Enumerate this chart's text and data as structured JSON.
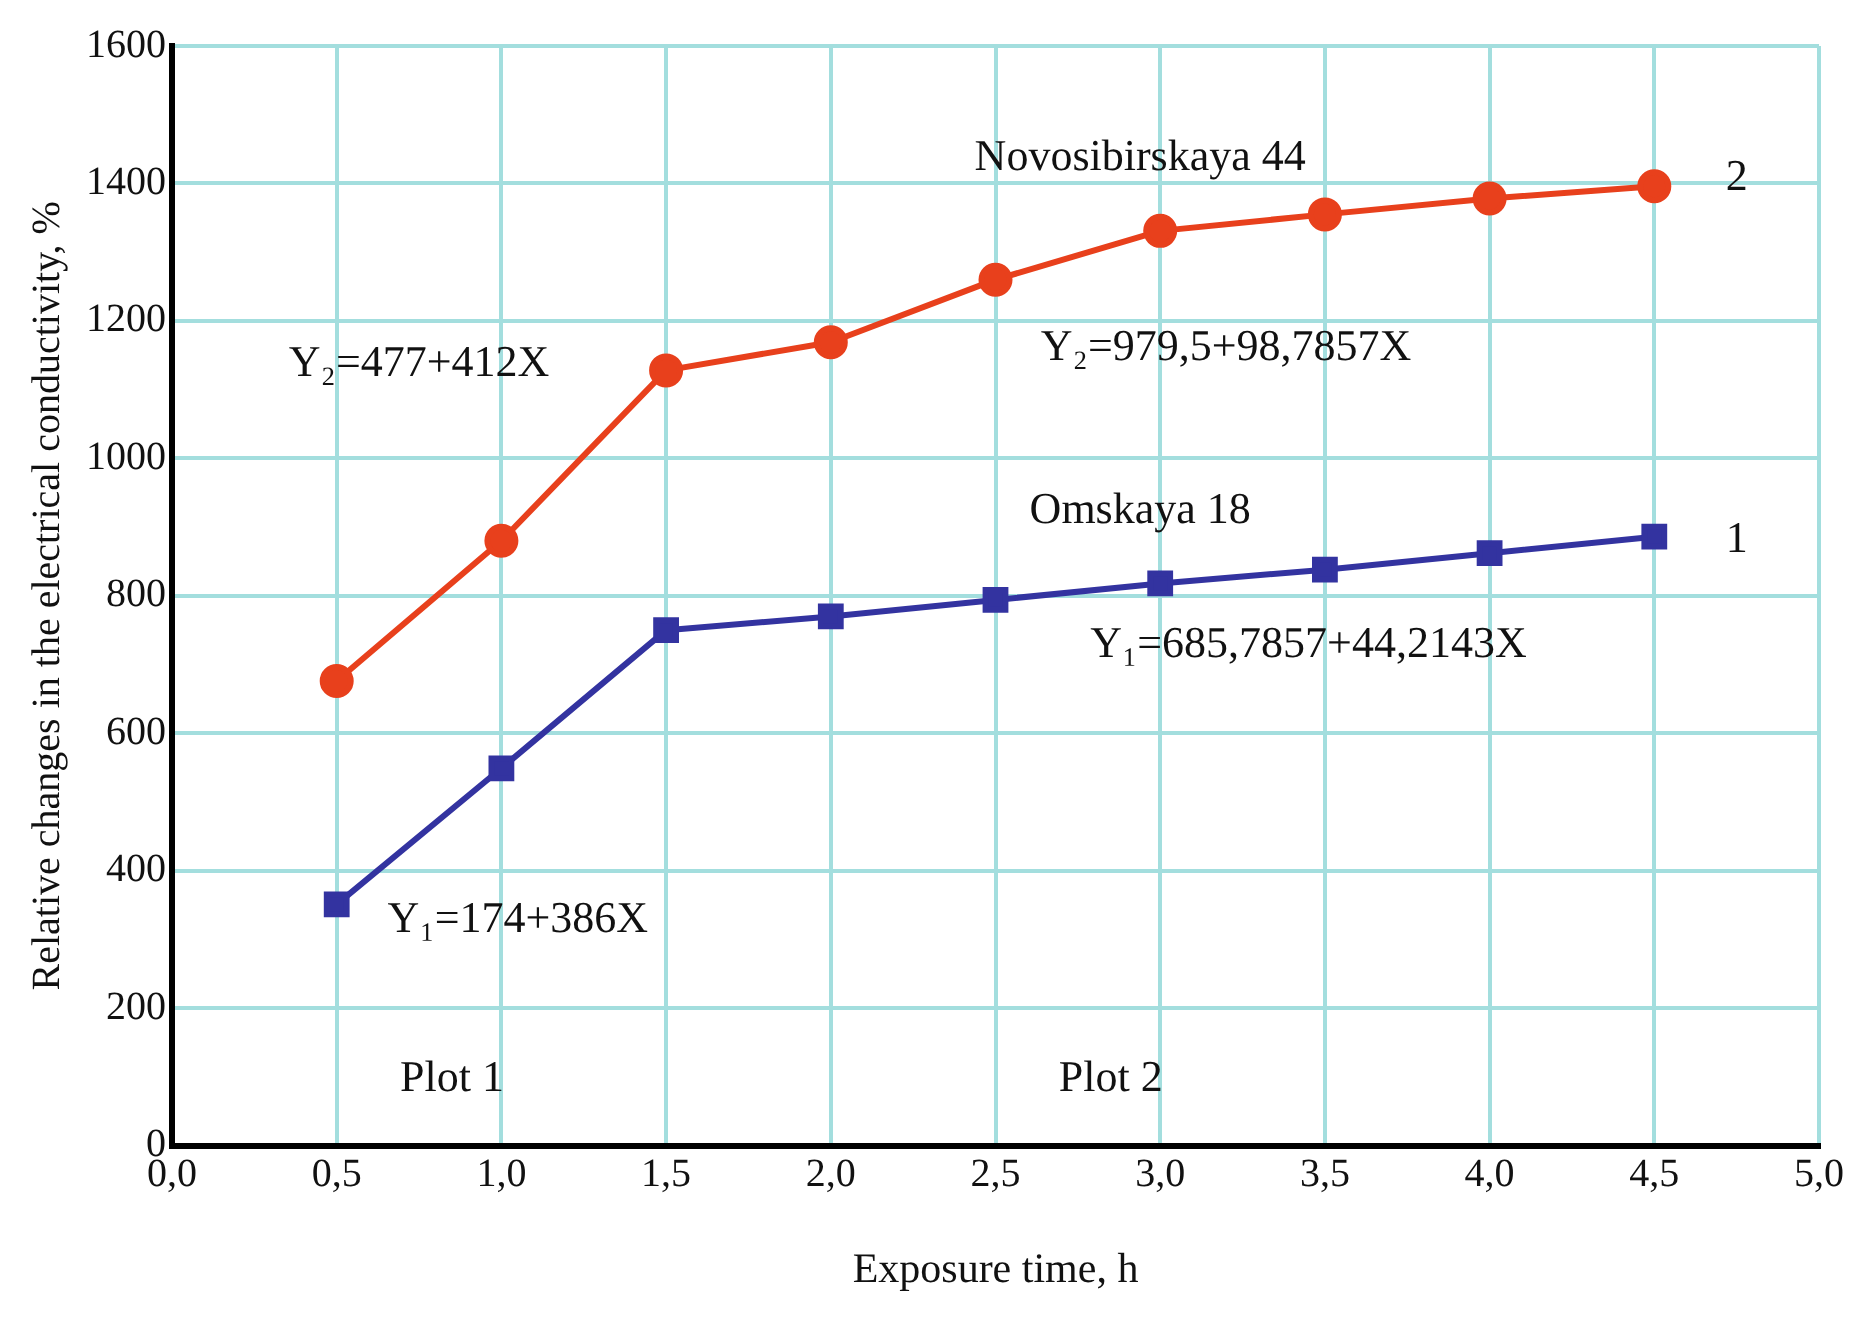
{
  "chart_data": {
    "type": "line",
    "xlabel": "Exposure time, h",
    "ylabel": "Relative changes in the electrical conductivity, %",
    "x": [
      0.5,
      1.0,
      1.5,
      2.0,
      2.5,
      3.0,
      3.5,
      4.0,
      4.5
    ],
    "series": [
      {
        "name": "Novosibirskaya 44",
        "color": "#e8401c",
        "marker": "circle",
        "values": [
          676,
          880,
          1128,
          1169,
          1260,
          1331,
          1355,
          1378,
          1396
        ]
      },
      {
        "name": "Omskaya 18",
        "color": "#3333a0",
        "marker": "square",
        "values": [
          351,
          549,
          750,
          770,
          794,
          818,
          838,
          862,
          886
        ]
      }
    ],
    "xlim": [
      0,
      5
    ],
    "xticks": [
      {
        "value": 0,
        "label": "0,0"
      },
      {
        "value": 0.5,
        "label": "0,5"
      },
      {
        "value": 1,
        "label": "1,0"
      },
      {
        "value": 1.5,
        "label": "1,5"
      },
      {
        "value": 2,
        "label": "2,0"
      },
      {
        "value": 2.5,
        "label": "2,5"
      },
      {
        "value": 3,
        "label": "3,0"
      },
      {
        "value": 3.5,
        "label": "3,5"
      },
      {
        "value": 4,
        "label": "4,0"
      },
      {
        "value": 4.5,
        "label": "4,5"
      },
      {
        "value": 5,
        "label": "5,0"
      }
    ],
    "ylim": [
      0,
      1600
    ],
    "yticks": [
      0,
      200,
      400,
      600,
      800,
      1000,
      1200,
      1400,
      1600
    ],
    "grid": true,
    "legend": false,
    "annotations": [
      "2",
      "1",
      "Y₂=477+412X",
      "Y₂=979,5+98,7857X",
      "Y₁=685,7857+44,2143X",
      "Y₁=174+386X",
      "Plot 1",
      "Plot 2"
    ]
  }
}
